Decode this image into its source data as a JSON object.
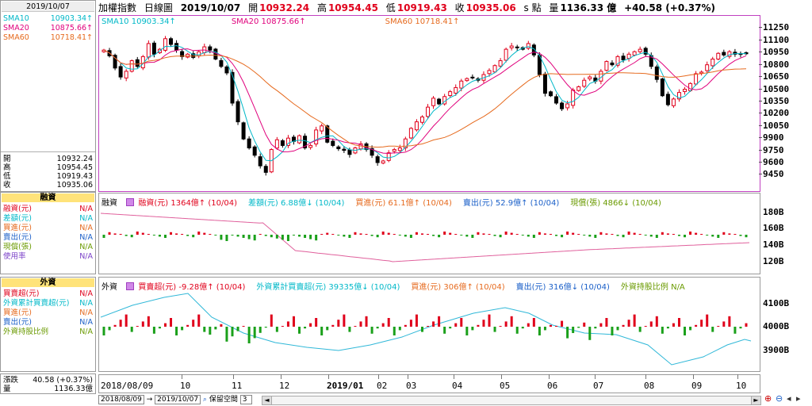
{
  "header": {
    "symbol": "加權指數",
    "period": "日線圖",
    "date": "2019/10/07",
    "open_label": "開",
    "open": "10932.24",
    "high_label": "高",
    "high": "10954.45",
    "low_label": "低",
    "low": "10919.43",
    "close_label": "收",
    "close": "10935.06",
    "unit": "s 點",
    "volume_label": "量",
    "volume": "1136.33 億",
    "change": "+40.58 (+0.37%)"
  },
  "sidebar": {
    "date": "2019/10/07",
    "sma": [
      {
        "label": "SMA10",
        "value": "10903.34↑",
        "color": "#00b8c8"
      },
      {
        "label": "SMA20",
        "value": "10875.66↑",
        "color": "#e0007c"
      },
      {
        "label": "SMA60",
        "value": "10718.41↑",
        "color": "#e66a1e"
      }
    ],
    "ohlc": [
      {
        "label": "開",
        "value": "10932.24"
      },
      {
        "label": "高",
        "value": "10954.45"
      },
      {
        "label": "低",
        "value": "10919.43"
      },
      {
        "label": "收",
        "value": "10935.06"
      }
    ],
    "margin_title": "融資",
    "margin_rows": [
      {
        "label": "融資(元)",
        "value": "N/A",
        "color": "#e0001b"
      },
      {
        "label": "差額(元)",
        "value": "N/A",
        "color": "#00b8c8"
      },
      {
        "label": "買進(元)",
        "value": "N/A",
        "color": "#e66a1e"
      },
      {
        "label": "賣出(元)",
        "value": "N/A",
        "color": "#1a5fc8"
      },
      {
        "label": "現償(張)",
        "value": "N/A",
        "color": "#6a9a00"
      },
      {
        "label": "使用率",
        "value": "N/A",
        "color": "#7a40c8"
      }
    ],
    "foreign_title": "外資",
    "foreign_rows": [
      {
        "label": "買賣超(元)",
        "value": "N/A",
        "color": "#e0001b"
      },
      {
        "label": "外資累計買賣超(元)",
        "value": "N/A",
        "color": "#00b8c8"
      },
      {
        "label": "買進(元)",
        "value": "N/A",
        "color": "#e66a1e"
      },
      {
        "label": "賣出(元)",
        "value": "N/A",
        "color": "#1a5fc8"
      },
      {
        "label": "外資持股比例",
        "value": "N/A",
        "color": "#6a9a00"
      }
    ],
    "chg_label": "漲跌",
    "chg_value": "40.58 (+0.37%)",
    "vol_label": "量",
    "vol_value": "1136.33億"
  },
  "price_legend": [
    {
      "text": "SMA10 10903.34↑",
      "color": "#00b8c8"
    },
    {
      "text": "SMA20 10875.66↑",
      "color": "#e0007c"
    },
    {
      "text": "SMA60 10718.41↑",
      "color": "#e66a1e"
    }
  ],
  "margin_panel": {
    "title": "融資",
    "legend": [
      {
        "text": "融資(元) 1364億↑ (10/04)",
        "color": "#e0001b"
      },
      {
        "text": "差額(元) 6.88億↓ (10/04)",
        "color": "#00b8c8"
      },
      {
        "text": "買進(元) 61.1億↑ (10/04)",
        "color": "#e66a1e"
      },
      {
        "text": "賣出(元) 52.9億↑ (10/04)",
        "color": "#1a5fc8"
      },
      {
        "text": "現償(張) 4866↓ (10/04)",
        "color": "#6a9a00"
      }
    ]
  },
  "foreign_panel": {
    "title": "外資",
    "legend": [
      {
        "text": "買賣超(元) -9.28億↑ (10/04)",
        "color": "#e0001b"
      },
      {
        "text": "外資累計買賣超(元) 39335億↓ (10/04)",
        "color": "#00b8c8"
      },
      {
        "text": "買進(元) 306億↑ (10/04)",
        "color": "#e66a1e"
      },
      {
        "text": "賣出(元) 316億↓ (10/04)",
        "color": "#1a5fc8"
      },
      {
        "text": "外資持股比例 N/A",
        "color": "#6a9a00"
      }
    ]
  },
  "controls": {
    "from": "2018/08/09",
    "to": "2019/10/07",
    "keep_space": "保留空間",
    "keep_value": "3"
  },
  "chart_data": [
    {
      "type": "line",
      "name": "price",
      "ylim": [
        9250,
        11400
      ],
      "yticks": [
        11250,
        11100,
        10950,
        10800,
        10650,
        10500,
        10350,
        10200,
        10050,
        9900,
        9750,
        9600,
        9450
      ],
      "x_labels": [
        "2018/08/09",
        "10",
        "11",
        "12",
        "2019/01",
        "02",
        "03",
        "04",
        "05",
        "06",
        "07",
        "08",
        "09",
        "10"
      ],
      "series": [
        {
          "name": "SMA10",
          "color": "#00b8c8"
        },
        {
          "name": "SMA20",
          "color": "#e0007c"
        },
        {
          "name": "SMA60",
          "color": "#e66a1e"
        }
      ],
      "close_path": [
        10980,
        10910,
        10760,
        10650,
        10720,
        10850,
        10780,
        10900,
        11060,
        10930,
        10990,
        11120,
        11050,
        10980,
        10900,
        10930,
        10890,
        10960,
        11020,
        10980,
        10870,
        10780,
        10700,
        10330,
        10100,
        9890,
        9780,
        9690,
        9560,
        9480,
        9760,
        9880,
        9810,
        9900,
        9860,
        9930,
        9780,
        9810,
        10000,
        10050,
        9850,
        9810,
        9770,
        9750,
        9700,
        9780,
        9830,
        9760,
        9690,
        9600,
        9620,
        9720,
        9760,
        9780,
        9890,
        10020,
        10100,
        10160,
        10280,
        10390,
        10320,
        10410,
        10470,
        10520,
        10600,
        10630,
        10640,
        10610,
        10680,
        10730,
        10790,
        10850,
        10990,
        11030,
        11010,
        10990,
        11060,
        10920,
        10680,
        10450,
        10420,
        10330,
        10260,
        10320,
        10490,
        10530,
        10610,
        10650,
        10600,
        10720,
        10840,
        10800,
        10900,
        10860,
        10930,
        10960,
        10990,
        10930,
        10780,
        10620,
        10420,
        10310,
        10380,
        10460,
        10500,
        10570,
        10690,
        10710,
        10800,
        10870,
        10940,
        10920,
        10960,
        10930,
        10930,
        10935
      ]
    },
    {
      "type": "bar",
      "name": "margin",
      "yticks": [
        "180B",
        "160B",
        "140B",
        "120B"
      ]
    },
    {
      "type": "bar",
      "name": "foreign",
      "yticks": [
        "4100B",
        "4000B",
        "3900B"
      ]
    }
  ]
}
